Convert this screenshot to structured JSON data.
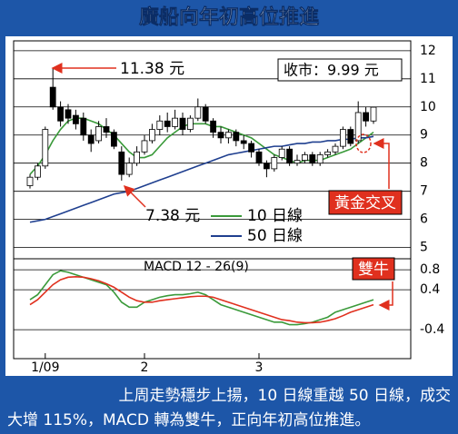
{
  "chart_data": [
    {
      "type": "candlestick",
      "title": "廣船向年初高位推進",
      "open": [
        7.2,
        7.5,
        7.9,
        10.7,
        10.0,
        9.9,
        9.7,
        9.6,
        9.0,
        8.8,
        9.3,
        9.1,
        8.4,
        7.6,
        8.0,
        8.4,
        8.8,
        9.2,
        9.5,
        9.3,
        9.6,
        9.2,
        9.6,
        10.0,
        9.5,
        9.1,
        8.9,
        9.1,
        8.8,
        8.7,
        8.4,
        8.0,
        7.8,
        8.2,
        8.5,
        8.0,
        8.1,
        8.3,
        8.0,
        8.3,
        8.4,
        8.6,
        9.2,
        8.8,
        9.8,
        9.5
      ],
      "high": [
        7.6,
        8.0,
        9.3,
        11.38,
        10.2,
        10.1,
        9.9,
        9.8,
        9.2,
        9.5,
        9.6,
        9.2,
        8.6,
        8.2,
        8.6,
        9.0,
        9.4,
        9.7,
        9.8,
        9.9,
        9.8,
        9.7,
        10.3,
        10.1,
        9.6,
        9.3,
        9.2,
        9.2,
        9.0,
        8.8,
        8.5,
        8.1,
        8.3,
        8.6,
        8.6,
        8.3,
        8.4,
        8.4,
        8.4,
        8.5,
        8.7,
        9.3,
        9.3,
        10.2,
        10.0,
        10.0
      ],
      "low": [
        7.1,
        7.4,
        7.8,
        9.9,
        9.3,
        9.4,
        9.2,
        8.8,
        8.4,
        8.7,
        8.9,
        8.5,
        7.38,
        7.5,
        7.9,
        8.3,
        8.7,
        9.0,
        9.1,
        9.2,
        9.0,
        9.1,
        9.5,
        9.4,
        8.9,
        8.7,
        8.7,
        8.6,
        8.5,
        8.2,
        7.9,
        7.5,
        7.7,
        8.1,
        7.9,
        7.9,
        8.0,
        7.9,
        7.9,
        8.2,
        8.3,
        8.5,
        8.6,
        8.7,
        9.3,
        9.4
      ],
      "close": [
        7.5,
        7.9,
        9.2,
        10.0,
        9.5,
        9.6,
        9.4,
        9.0,
        8.7,
        9.3,
        9.1,
        8.6,
        7.6,
        8.0,
        8.4,
        8.8,
        9.2,
        9.5,
        9.3,
        9.6,
        9.2,
        9.6,
        10.0,
        9.5,
        9.1,
        8.9,
        9.1,
        8.8,
        8.7,
        8.4,
        8.0,
        7.8,
        8.2,
        8.5,
        8.0,
        8.1,
        8.3,
        8.0,
        8.3,
        8.4,
        8.6,
        9.2,
        8.7,
        9.8,
        9.5,
        9.99
      ],
      "series": [
        {
          "name": "10 日線",
          "color": "#3a9a3a",
          "values": [
            7.6,
            7.9,
            8.3,
            8.8,
            9.2,
            9.5,
            9.6,
            9.6,
            9.5,
            9.4,
            9.2,
            9.0,
            8.7,
            8.4,
            8.2,
            8.2,
            8.3,
            8.6,
            8.9,
            9.1,
            9.3,
            9.4,
            9.4,
            9.4,
            9.3,
            9.3,
            9.2,
            9.1,
            9.0,
            8.9,
            8.7,
            8.5,
            8.3,
            8.2,
            8.1,
            8.0,
            8.1,
            8.1,
            8.1,
            8.2,
            8.3,
            8.4,
            8.5,
            8.7,
            8.9,
            9.1
          ]
        },
        {
          "name": "50 日線",
          "color": "#1f3f8f",
          "values": [
            5.9,
            5.95,
            6.0,
            6.1,
            6.2,
            6.3,
            6.4,
            6.5,
            6.6,
            6.7,
            6.8,
            6.9,
            6.95,
            7.0,
            7.1,
            7.2,
            7.3,
            7.4,
            7.5,
            7.6,
            7.7,
            7.8,
            7.9,
            8.0,
            8.1,
            8.2,
            8.3,
            8.35,
            8.4,
            8.45,
            8.5,
            8.55,
            8.6,
            8.6,
            8.65,
            8.7,
            8.7,
            8.75,
            8.75,
            8.8,
            8.8,
            8.85,
            8.85,
            8.9,
            8.9,
            8.95
          ]
        }
      ],
      "ylim": [
        4.6,
        12.35
      ],
      "yticks": [
        12,
        11,
        10,
        9,
        8,
        7,
        6,
        5
      ],
      "grid": true,
      "annotations": [
        "11.38 元",
        "收市：9.99 元",
        "7.38 元",
        "黃金交叉"
      ]
    },
    {
      "type": "line",
      "title": "MACD 12 - 26(9)",
      "categories": [
        null,
        null,
        "1/09",
        null,
        null,
        null,
        null,
        null,
        null,
        null,
        null,
        null,
        null,
        null,
        null,
        "2",
        null,
        null,
        null,
        null,
        null,
        null,
        null,
        null,
        null,
        null,
        null,
        null,
        null,
        null,
        "3",
        null,
        null,
        null,
        null,
        null,
        null,
        null,
        null,
        null,
        null,
        null,
        null,
        null,
        null,
        null
      ],
      "series": [
        {
          "color": "#3a9a3a",
          "values": [
            0.2,
            0.3,
            0.5,
            0.7,
            0.78,
            0.75,
            0.7,
            0.65,
            0.6,
            0.55,
            0.5,
            0.35,
            0.15,
            0.05,
            0.05,
            0.15,
            0.2,
            0.25,
            0.28,
            0.3,
            0.3,
            0.32,
            0.35,
            0.3,
            0.2,
            0.1,
            0.05,
            0.0,
            -0.05,
            -0.1,
            -0.15,
            -0.2,
            -0.25,
            -0.25,
            -0.3,
            -0.3,
            -0.28,
            -0.25,
            -0.2,
            -0.15,
            -0.05,
            0.0,
            0.05,
            0.1,
            0.15,
            0.2
          ]
        },
        {
          "color": "#e0301e",
          "values": [
            0.1,
            0.2,
            0.35,
            0.5,
            0.6,
            0.65,
            0.66,
            0.65,
            0.62,
            0.58,
            0.52,
            0.45,
            0.35,
            0.25,
            0.18,
            0.15,
            0.15,
            0.18,
            0.2,
            0.22,
            0.24,
            0.26,
            0.27,
            0.27,
            0.25,
            0.2,
            0.15,
            0.1,
            0.05,
            0.0,
            -0.05,
            -0.1,
            -0.15,
            -0.2,
            -0.22,
            -0.25,
            -0.26,
            -0.26,
            -0.25,
            -0.22,
            -0.18,
            -0.12,
            -0.05,
            0.0,
            0.05,
            0.1
          ]
        }
      ],
      "ylim": [
        -0.98,
        1.02
      ],
      "yticks": [
        0.8,
        0.4,
        -0.4
      ],
      "grid": true,
      "annotations": [
        "雙牛"
      ]
    }
  ],
  "caption": [
    "上周走勢穩步上揚，10 日線重越 50 日線，成交",
    "大增 115%，MACD 轉為雙牛，正向年初高位推進。"
  ]
}
